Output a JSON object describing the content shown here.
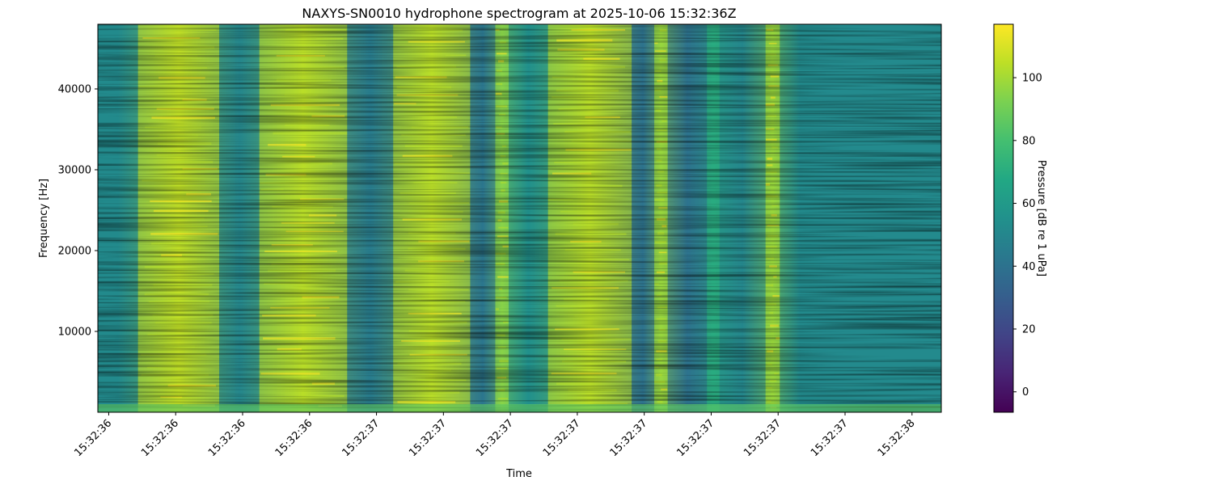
{
  "chart_data": {
    "type": "heatmap",
    "title": "NAXYS-SN0010 hydrophone spectrogram at 2025-10-06 15:32:36Z",
    "xlabel": "Time",
    "ylabel": "Frequency [Hz]",
    "colorbar_label": "Pressure [dB re 1 uPa]",
    "colormap": "viridis",
    "color_range": [
      -6.5,
      117
    ],
    "colorbar_ticks": [
      "0",
      "20",
      "40",
      "60",
      "80",
      "100"
    ],
    "colorbar_tick_values": [
      0,
      20,
      40,
      60,
      80,
      100
    ],
    "x_tick_labels": [
      "15:32:36",
      "15:32:36",
      "15:32:36",
      "15:32:36",
      "15:32:37",
      "15:32:37",
      "15:32:37",
      "15:32:37",
      "15:32:37",
      "15:32:37",
      "15:32:37",
      "15:32:37",
      "15:32:38"
    ],
    "x_tick_positions": [
      0.16,
      0.24,
      0.32,
      0.4,
      0.48,
      0.56,
      0.64,
      0.72,
      0.8,
      0.88,
      0.96,
      1.04,
      1.12
    ],
    "xlim": [
      0.147,
      1.155
    ],
    "x_unit": "seconds after 15:32:36",
    "y_ticks": [
      "10000",
      "20000",
      "30000",
      "40000"
    ],
    "y_tick_values": [
      10000,
      20000,
      30000,
      40000
    ],
    "ylim": [
      0,
      48000
    ],
    "bands": [
      {
        "x_start": 0.147,
        "x_end": 0.195,
        "level": 52
      },
      {
        "x_start": 0.195,
        "x_end": 0.292,
        "level": 105
      },
      {
        "x_start": 0.292,
        "x_end": 0.34,
        "level": 50
      },
      {
        "x_start": 0.34,
        "x_end": 0.445,
        "level": 104
      },
      {
        "x_start": 0.445,
        "x_end": 0.5,
        "level": 45
      },
      {
        "x_start": 0.5,
        "x_end": 0.592,
        "level": 104
      },
      {
        "x_start": 0.592,
        "x_end": 0.622,
        "level": 42
      },
      {
        "x_start": 0.622,
        "x_end": 0.638,
        "level": 95
      },
      {
        "x_start": 0.638,
        "x_end": 0.685,
        "level": 55
      },
      {
        "x_start": 0.685,
        "x_end": 0.785,
        "level": 104
      },
      {
        "x_start": 0.785,
        "x_end": 0.812,
        "level": 40
      },
      {
        "x_start": 0.812,
        "x_end": 0.828,
        "level": 98
      },
      {
        "x_start": 0.828,
        "x_end": 0.875,
        "level": 40
      },
      {
        "x_start": 0.875,
        "x_end": 0.89,
        "level": 70
      },
      {
        "x_start": 0.89,
        "x_end": 0.945,
        "level": 50
      },
      {
        "x_start": 0.945,
        "x_end": 0.962,
        "level": 98
      },
      {
        "x_start": 0.962,
        "x_end": 1.01,
        "level": 52
      }
    ]
  }
}
